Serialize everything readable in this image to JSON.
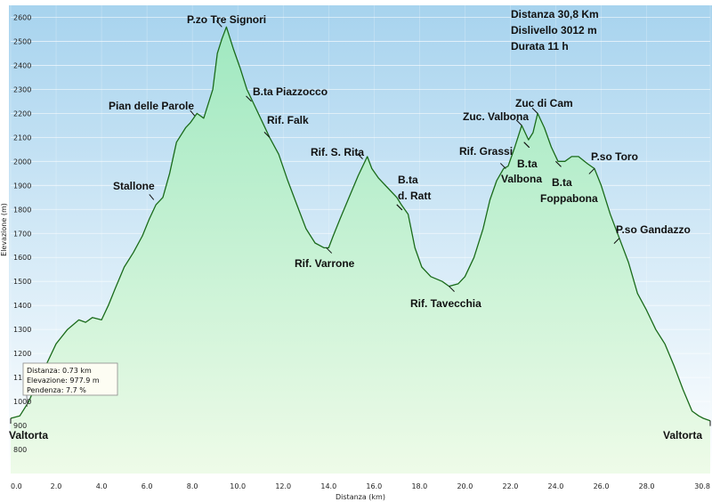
{
  "chart_data": {
    "type": "area",
    "xlabel": "Distanza (km)",
    "ylabel": "Elevazione (m)",
    "xlim": [
      0,
      30.8
    ],
    "ylim": [
      700,
      2650
    ],
    "grid": true,
    "x_ticks": [
      "0.0",
      "2.0",
      "4.0",
      "6.0",
      "8.0",
      "10.0",
      "12.0",
      "14.0",
      "16.0",
      "18.0",
      "20.0",
      "22.0",
      "24.0",
      "26.0",
      "28.0",
      "30.8"
    ],
    "y_ticks": [
      "800",
      "900",
      "1000",
      "1100",
      "1200",
      "1300",
      "1400",
      "1500",
      "1600",
      "1700",
      "1800",
      "1900",
      "2000",
      "2100",
      "2200",
      "2300",
      "2400",
      "2500",
      "2600"
    ],
    "series": [
      {
        "x": [
          0.0,
          0.4,
          0.8,
          1.2,
          1.6,
          2.0,
          2.5,
          3.0,
          3.3,
          3.6,
          4.0,
          4.3,
          4.6,
          5.0,
          5.4,
          5.8,
          6.1,
          6.4,
          6.7,
          7.0,
          7.3,
          7.7,
          7.9,
          8.2,
          8.5,
          8.9,
          9.1,
          9.3,
          9.5,
          9.8,
          10.1,
          10.4,
          10.7,
          11.1,
          11.4,
          11.8,
          12.2,
          12.6,
          13.0,
          13.4,
          13.8,
          14.0,
          14.2,
          14.5,
          14.9,
          15.3,
          15.7,
          15.9,
          16.2,
          16.6,
          17.0,
          17.2,
          17.5,
          17.8,
          18.1,
          18.5,
          19.0,
          19.3,
          19.7,
          20.0,
          20.4,
          20.8,
          21.1,
          21.4,
          21.7,
          21.9,
          22.2,
          22.5,
          22.8,
          23.0,
          23.2,
          23.5,
          23.8,
          24.1,
          24.4,
          24.7,
          25.0,
          25.4,
          25.7,
          26.0,
          26.4,
          26.8,
          27.2,
          27.6,
          28.0,
          28.4,
          28.8,
          29.2,
          29.6,
          30.0,
          30.3,
          30.5,
          30.8
        ],
        "y": [
          930,
          940,
          1000,
          1090,
          1160,
          1240,
          1300,
          1340,
          1330,
          1350,
          1340,
          1400,
          1470,
          1560,
          1620,
          1690,
          1760,
          1820,
          1850,
          1950,
          2080,
          2140,
          2160,
          2200,
          2180,
          2300,
          2450,
          2510,
          2560,
          2470,
          2390,
          2300,
          2240,
          2160,
          2100,
          2030,
          1920,
          1820,
          1720,
          1660,
          1640,
          1640,
          1690,
          1760,
          1850,
          1940,
          2020,
          1970,
          1930,
          1890,
          1850,
          1820,
          1780,
          1640,
          1560,
          1520,
          1500,
          1480,
          1490,
          1520,
          1600,
          1720,
          1840,
          1920,
          1970,
          1980,
          2060,
          2150,
          2090,
          2120,
          2200,
          2140,
          2060,
          2000,
          2000,
          2020,
          2020,
          1990,
          1970,
          1900,
          1780,
          1680,
          1580,
          1450,
          1380,
          1300,
          1240,
          1150,
          1050,
          960,
          940,
          930,
          920
        ]
      }
    ],
    "annotations": [
      {
        "label": "P.zo Tre Signori",
        "x": 9.3,
        "y": 2560
      },
      {
        "label": "Pian delle Parole",
        "x": 8.1,
        "y": 2190
      },
      {
        "label": "B.ta Piazzocco",
        "x": 10.6,
        "y": 2250
      },
      {
        "label": "Rif. Falk",
        "x": 11.4,
        "y": 2100
      },
      {
        "label": "Stallone",
        "x": 6.3,
        "y": 1840
      },
      {
        "label": "Rif. S. Rita",
        "x": 15.5,
        "y": 2010
      },
      {
        "label": "Rif. Varrone",
        "x": 13.9,
        "y": 1640
      },
      {
        "label": "B.ta",
        "x": 17.0,
        "y": 1820
      },
      {
        "label": "d. Ratt",
        "x": 17.0,
        "y": 1820
      },
      {
        "label": "Rif. Tavecchia",
        "x": 19.3,
        "y": 1480
      },
      {
        "label": "Rif. Grassi",
        "x": 21.8,
        "y": 1970
      },
      {
        "label": "Zuc. Valbona",
        "x": 22.5,
        "y": 2150
      },
      {
        "label": "Zuc di Cam",
        "x": 23.2,
        "y": 2200
      },
      {
        "label": "B.ta",
        "x": 22.6,
        "y": 2080
      },
      {
        "label": "Valbona",
        "x": 22.6,
        "y": 2080
      },
      {
        "label": "B.ta",
        "x": 24.0,
        "y": 2000
      },
      {
        "label": "Foppabona",
        "x": 24.0,
        "y": 2000
      },
      {
        "label": "P.so Toro",
        "x": 25.7,
        "y": 1970
      },
      {
        "label": "P.so Gandazzo",
        "x": 26.8,
        "y": 1680
      },
      {
        "label": "Valtorta",
        "x": 0.0,
        "y": 930
      },
      {
        "label": "Valtorta",
        "x": 30.8,
        "y": 920
      }
    ],
    "stats": {
      "distanza": "Distanza   30,8 Km",
      "dislivello": "Dislivello  3012 m",
      "durata": "Durata  11 h"
    },
    "tooltip": {
      "x": 0.73,
      "y": 977.9,
      "lines": [
        "Distanza: 0.73 km",
        "Elevazione: 977.9 m",
        "Pendenza: 7.7 %"
      ]
    },
    "colors": {
      "line": "#1a6b1a",
      "fill_top": "#9fe8c0",
      "fill_bottom": "#eefbe8",
      "bg_top": "#a7d3ee",
      "bg_bottom": "#ffffff"
    }
  }
}
